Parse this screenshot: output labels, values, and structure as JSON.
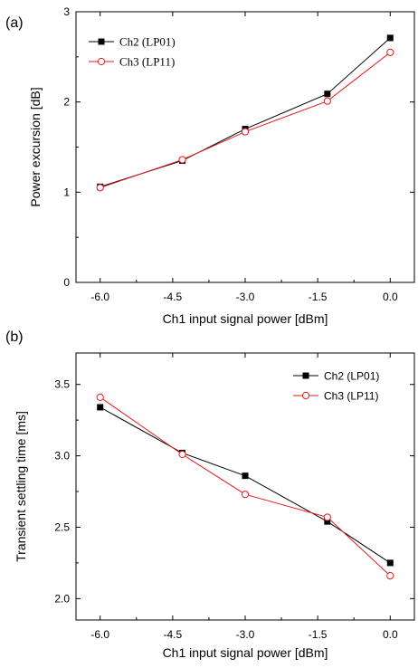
{
  "colors": {
    "ch2": "#000000",
    "ch3": "#e41a1c"
  },
  "chart_data": [
    {
      "type": "line",
      "panel_label": "(a)",
      "xlabel": "Ch1 input signal power [dBm]",
      "ylabel": "Power excursion [dB]",
      "x_ticks": [
        "-6.0",
        "-4.5",
        "-3.0",
        "-1.5",
        "0.0"
      ],
      "y_ticks": [
        "0",
        "1",
        "2",
        "3"
      ],
      "xlim": [
        -6.5,
        0.5
      ],
      "ylim": [
        0,
        3
      ],
      "legend_position": "top-left",
      "series": [
        {
          "name": "Ch2 (LP01)",
          "marker": "filled-square",
          "x": [
            -6.0,
            -4.3,
            -3.0,
            -1.3,
            0.0
          ],
          "y": [
            1.06,
            1.35,
            1.7,
            2.09,
            2.71
          ]
        },
        {
          "name": "Ch3 (LP11)",
          "marker": "open-circle",
          "x": [
            -6.0,
            -4.3,
            -3.0,
            -1.3,
            0.0
          ],
          "y": [
            1.05,
            1.36,
            1.67,
            2.01,
            2.55
          ]
        }
      ]
    },
    {
      "type": "line",
      "panel_label": "(b)",
      "xlabel": "Ch1 input signal power [dBm]",
      "ylabel": "Transient settling time [ms]",
      "x_ticks": [
        "-6.0",
        "-4.5",
        "-3.0",
        "-1.5",
        "0.0"
      ],
      "y_ticks": [
        "2.0",
        "2.5",
        "3.0",
        "3.5"
      ],
      "xlim": [
        -6.5,
        0.5
      ],
      "ylim": [
        1.85,
        3.72
      ],
      "legend_position": "top-right",
      "series": [
        {
          "name": "Ch2 (LP01)",
          "marker": "filled-square",
          "x": [
            -6.0,
            -4.3,
            -3.0,
            -1.3,
            0.0
          ],
          "y": [
            3.34,
            3.02,
            2.86,
            2.54,
            2.25
          ]
        },
        {
          "name": "Ch3 (LP11)",
          "marker": "open-circle",
          "x": [
            -6.0,
            -4.3,
            -3.0,
            -1.3,
            0.0
          ],
          "y": [
            3.41,
            3.01,
            2.73,
            2.57,
            2.16
          ]
        }
      ]
    }
  ]
}
